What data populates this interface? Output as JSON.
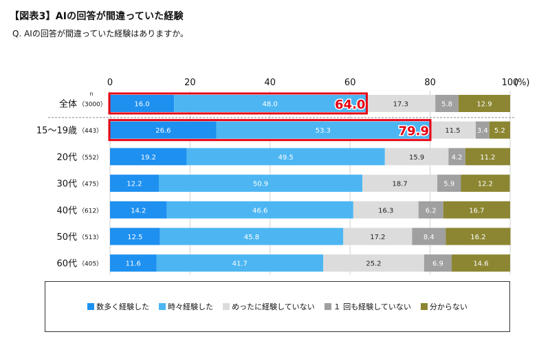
{
  "title": "【図表3】AIの回答が間違っていた経験",
  "subtitle": "Q. AIの回答が間違っていた経験はありますか。",
  "chart_data": {
    "type": "bar",
    "orientation": "horizontal",
    "stacked": true,
    "xlim": [
      0,
      100
    ],
    "x_ticks": [
      0,
      20,
      40,
      60,
      80,
      100
    ],
    "x_unit": "(%)",
    "n_header": "n",
    "categories": [
      "全体",
      "15～19歳",
      "20代",
      "30代",
      "40代",
      "50代",
      "60代"
    ],
    "n_labels": [
      "（3000）",
      "（443）",
      "（552）",
      "（475）",
      "（612）",
      "（513）",
      "（405）"
    ],
    "series": [
      {
        "name": "数多く経験した",
        "color": "#1e90f0",
        "values": [
          16.0,
          26.6,
          19.2,
          12.2,
          14.2,
          12.5,
          11.6
        ]
      },
      {
        "name": "時々経験した",
        "color": "#4db6f2",
        "values": [
          48.0,
          53.3,
          49.5,
          50.9,
          46.6,
          45.8,
          41.7
        ]
      },
      {
        "name": "めったに経験していない",
        "color": "#dcdcdc",
        "values": [
          17.3,
          11.5,
          15.9,
          18.7,
          16.3,
          17.2,
          25.2
        ]
      },
      {
        "name": "１ 回も経験していない",
        "color": "#a0a0a0",
        "values": [
          5.8,
          3.4,
          4.2,
          5.9,
          6.2,
          8.4,
          6.9
        ]
      },
      {
        "name": "分からない",
        "color": "#8c8632",
        "values": [
          12.9,
          5.2,
          11.2,
          12.2,
          16.7,
          16.2,
          14.6
        ]
      }
    ],
    "highlights": [
      {
        "category": "全体",
        "value": "64.0"
      },
      {
        "category": "15～19歳",
        "value": "79.9"
      }
    ]
  }
}
